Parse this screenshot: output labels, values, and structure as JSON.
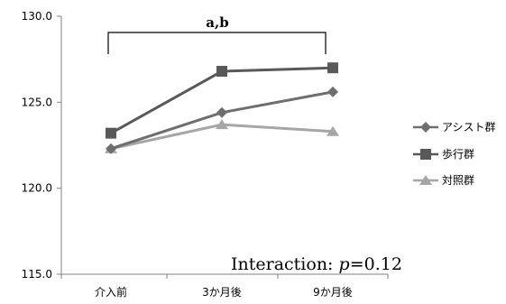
{
  "chart_data": {
    "type": "line",
    "categories": [
      "介入前",
      "3か月後",
      "9か月後"
    ],
    "ylim": [
      115.0,
      130.0
    ],
    "yticks": [
      "115.0",
      "120.0",
      "125.0",
      "130.0"
    ],
    "grid": false,
    "legend_position": "right",
    "series": [
      {
        "name": "アシスト群",
        "values": [
          122.3,
          124.4,
          125.6
        ],
        "color": "#6e6e6e",
        "marker": "diamond"
      },
      {
        "name": "歩行群",
        "values": [
          123.2,
          126.8,
          127.0
        ],
        "color": "#595959",
        "marker": "square"
      },
      {
        "name": "対照群",
        "values": [
          122.3,
          123.7,
          123.3
        ],
        "color": "#a6a6a6",
        "marker": "triangle"
      }
    ],
    "annotations": {
      "significance": "a,b",
      "interaction_label": "Interaction: ",
      "p_symbol": "p",
      "p_value": "=0.12"
    }
  }
}
